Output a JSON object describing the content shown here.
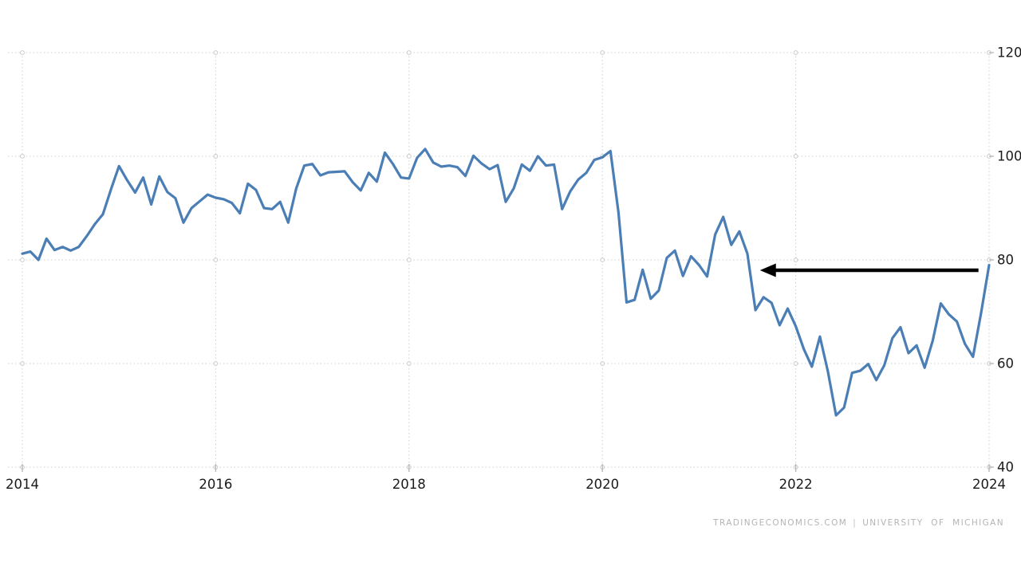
{
  "page": {
    "background": "#ffffff"
  },
  "attribution": {
    "source": "TRADINGECONOMICS.COM",
    "separator": "|",
    "provider": "UNIVERSITY OF MICHIGAN",
    "color": "#b4b4b4"
  },
  "chart_data": {
    "type": "line",
    "title": "",
    "xlabel": "",
    "ylabel": "",
    "xlim": [
      2014,
      2024
    ],
    "ylim": [
      40,
      120
    ],
    "x_ticks": [
      2014,
      2016,
      2018,
      2020,
      2022,
      2024
    ],
    "y_ticks": [
      120,
      100,
      80,
      60,
      40
    ],
    "grid": "dotted",
    "grid_color": "#cfcfcf",
    "tick_label_color": "#1a1a1a",
    "line_color": "#4a7eb5",
    "series": [
      {
        "name": "consumer-sentiment-index",
        "frequency": "monthly",
        "start_year": 2014,
        "start_month": 1,
        "values": [
          81.2,
          81.6,
          80.0,
          84.1,
          81.9,
          82.5,
          81.8,
          82.5,
          84.6,
          86.9,
          88.8,
          93.6,
          98.1,
          95.4,
          93.0,
          95.9,
          90.7,
          96.1,
          93.1,
          91.9,
          87.2,
          90.0,
          91.3,
          92.6,
          92.0,
          91.7,
          91.0,
          89.0,
          94.7,
          93.5,
          90.0,
          89.8,
          91.2,
          87.2,
          93.8,
          98.2,
          98.5,
          96.3,
          96.9,
          97.0,
          97.1,
          95.0,
          93.4,
          96.8,
          95.1,
          100.7,
          98.5,
          95.9,
          95.7,
          99.7,
          101.4,
          98.8,
          98.0,
          98.2,
          97.9,
          96.2,
          100.1,
          98.6,
          97.5,
          98.3,
          91.2,
          93.8,
          98.4,
          97.2,
          100.0,
          98.2,
          98.4,
          89.8,
          93.2,
          95.5,
          96.8,
          99.3,
          99.8,
          101.0,
          89.1,
          71.8,
          72.3,
          78.1,
          72.5,
          74.1,
          80.4,
          81.8,
          76.9,
          80.7,
          79.0,
          76.8,
          84.9,
          88.3,
          82.9,
          85.5,
          81.2,
          70.3,
          72.8,
          71.7,
          67.4,
          70.6,
          67.2,
          62.8,
          59.4,
          65.2,
          58.4,
          50.0,
          51.5,
          58.2,
          58.6,
          59.9,
          56.8,
          59.7,
          64.9,
          67.0,
          62.0,
          63.5,
          59.2,
          64.4,
          71.6,
          69.5,
          68.1,
          63.8,
          61.3,
          69.7,
          79.0
        ]
      }
    ],
    "annotation_arrow": {
      "direction": "left",
      "y_value": 78.0,
      "tip_x_year": 2021.63,
      "tail_x_year": 2023.89,
      "color": "#000000"
    },
    "legend": "none"
  }
}
